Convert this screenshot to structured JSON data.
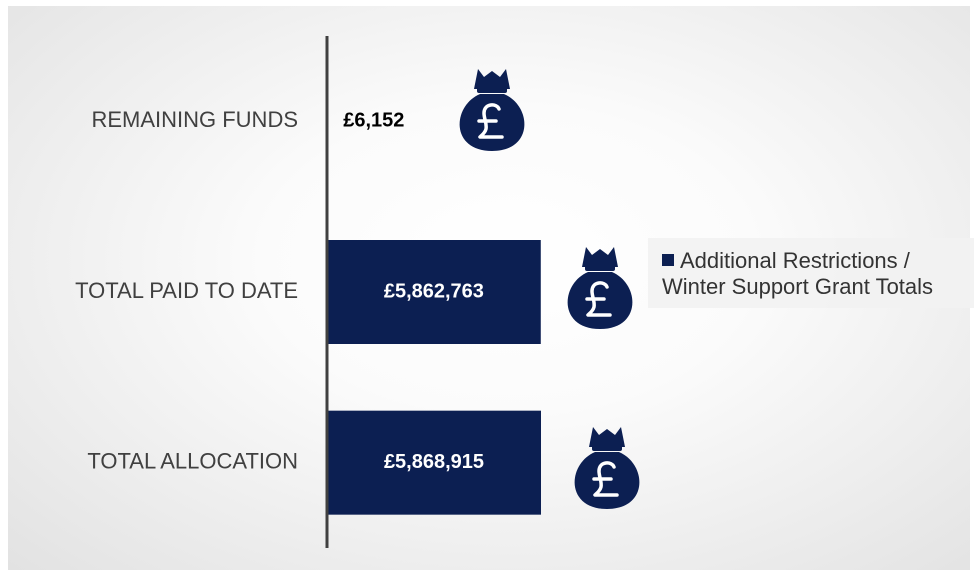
{
  "chart_data": {
    "type": "bar",
    "orientation": "horizontal",
    "categories": [
      "REMAINING FUNDS",
      "TOTAL PAID TO DATE",
      "TOTAL ALLOCATION"
    ],
    "series": [
      {
        "name": "Additional Restrictions / Winter Support Grant Totals",
        "color": "#0c1f52",
        "values": [
          6152,
          5862763,
          5868915
        ],
        "value_labels": [
          "£6,152",
          "£5,862,763",
          "£5,868,915"
        ]
      }
    ],
    "legend": "right"
  }
}
